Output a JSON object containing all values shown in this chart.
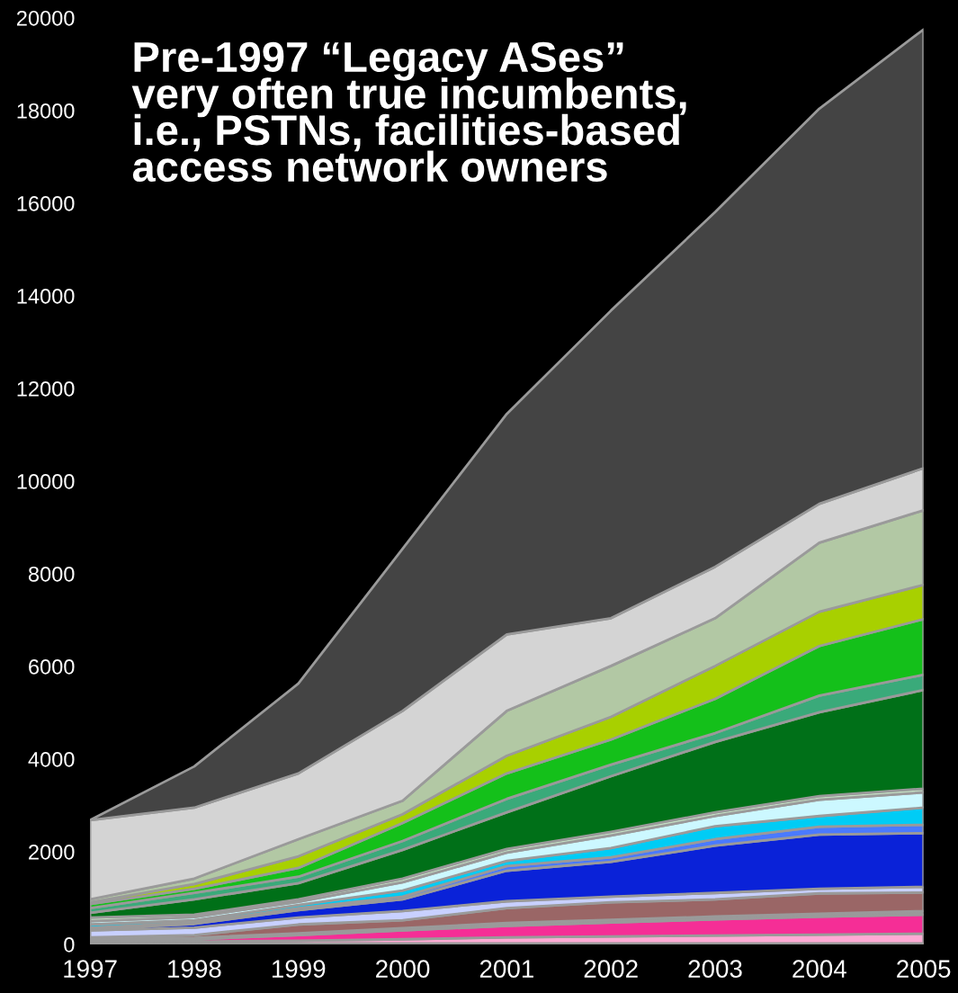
{
  "chart_data": {
    "type": "area",
    "stacked": true,
    "title": "Pre-1997 “Legacy ASes”\nvery often true incumbents,\ni.e., PSTNs, facilities-based\naccess network owners",
    "x": [
      1997,
      1998,
      1999,
      2000,
      2001,
      2002,
      2003,
      2004,
      2005
    ],
    "xlim": [
      1997,
      2005
    ],
    "xticks": [
      1997,
      1998,
      1999,
      2000,
      2001,
      2002,
      2003,
      2004,
      2005
    ],
    "ylim": [
      0,
      20000
    ],
    "yticks": [
      0,
      2000,
      4000,
      6000,
      8000,
      10000,
      12000,
      14000,
      16000,
      18000,
      20000
    ],
    "grid": false,
    "legend": false,
    "series": [
      {
        "color": "#f5c800",
        "values": [
          10,
          20,
          20,
          20,
          20,
          20,
          20,
          20,
          20
        ]
      },
      {
        "color": "#ffaad4",
        "values": [
          30,
          40,
          60,
          90,
          130,
          150,
          170,
          190,
          210
        ]
      },
      {
        "color": "#f52e96",
        "values": [
          30,
          50,
          120,
          190,
          250,
          300,
          350,
          390,
          410
        ]
      },
      {
        "color": "#9a9a9a",
        "values": [
          30,
          30,
          40,
          50,
          60,
          60,
          60,
          60,
          80
        ]
      },
      {
        "color": "#9a6666",
        "values": [
          50,
          60,
          190,
          170,
          320,
          380,
          370,
          440,
          400
        ]
      },
      {
        "color": "#c8d0ff",
        "values": [
          150,
          160,
          150,
          200,
          150,
          120,
          140,
          100,
          120
        ]
      },
      {
        "color": "#0a22d8",
        "values": [
          30,
          80,
          160,
          250,
          660,
          750,
          1020,
          1170,
          1160
        ]
      },
      {
        "color": "#4a7aff",
        "values": [
          30,
          30,
          40,
          60,
          100,
          100,
          140,
          170,
          180
        ]
      },
      {
        "color": "#00ccf5",
        "values": [
          70,
          50,
          70,
          130,
          110,
          200,
          280,
          230,
          370
        ]
      },
      {
        "color": "#ccf8ff",
        "values": [
          70,
          70,
          70,
          180,
          180,
          270,
          220,
          350,
          330
        ]
      },
      {
        "color": "#c4e0c4",
        "values": [
          80,
          50,
          50,
          80,
          80,
          80,
          80,
          80,
          80
        ]
      },
      {
        "color": "#007018",
        "values": [
          100,
          330,
          350,
          620,
          790,
          1200,
          1520,
          1810,
          2130
        ]
      },
      {
        "color": "#3aaa7a",
        "values": [
          100,
          140,
          140,
          190,
          290,
          250,
          190,
          360,
          330
        ]
      },
      {
        "color": "#14c01a",
        "values": [
          90,
          90,
          190,
          390,
          550,
          540,
          740,
          1070,
          1200
        ]
      },
      {
        "color": "#a8d000",
        "values": [
          40,
          100,
          250,
          190,
          380,
          490,
          710,
          740,
          740
        ]
      },
      {
        "color": "#b2c8a4",
        "values": [
          60,
          120,
          370,
          290,
          970,
          1100,
          1030,
          1490,
          1610
        ]
      },
      {
        "color": "#d4d4d4",
        "values": [
          1710,
          1530,
          1420,
          1940,
          1650,
          1030,
          1110,
          840,
          910
        ]
      },
      {
        "color": "#444444",
        "values": [
          0,
          890,
          1940,
          3500,
          4760,
          6640,
          7660,
          8530,
          9470
        ]
      }
    ]
  }
}
